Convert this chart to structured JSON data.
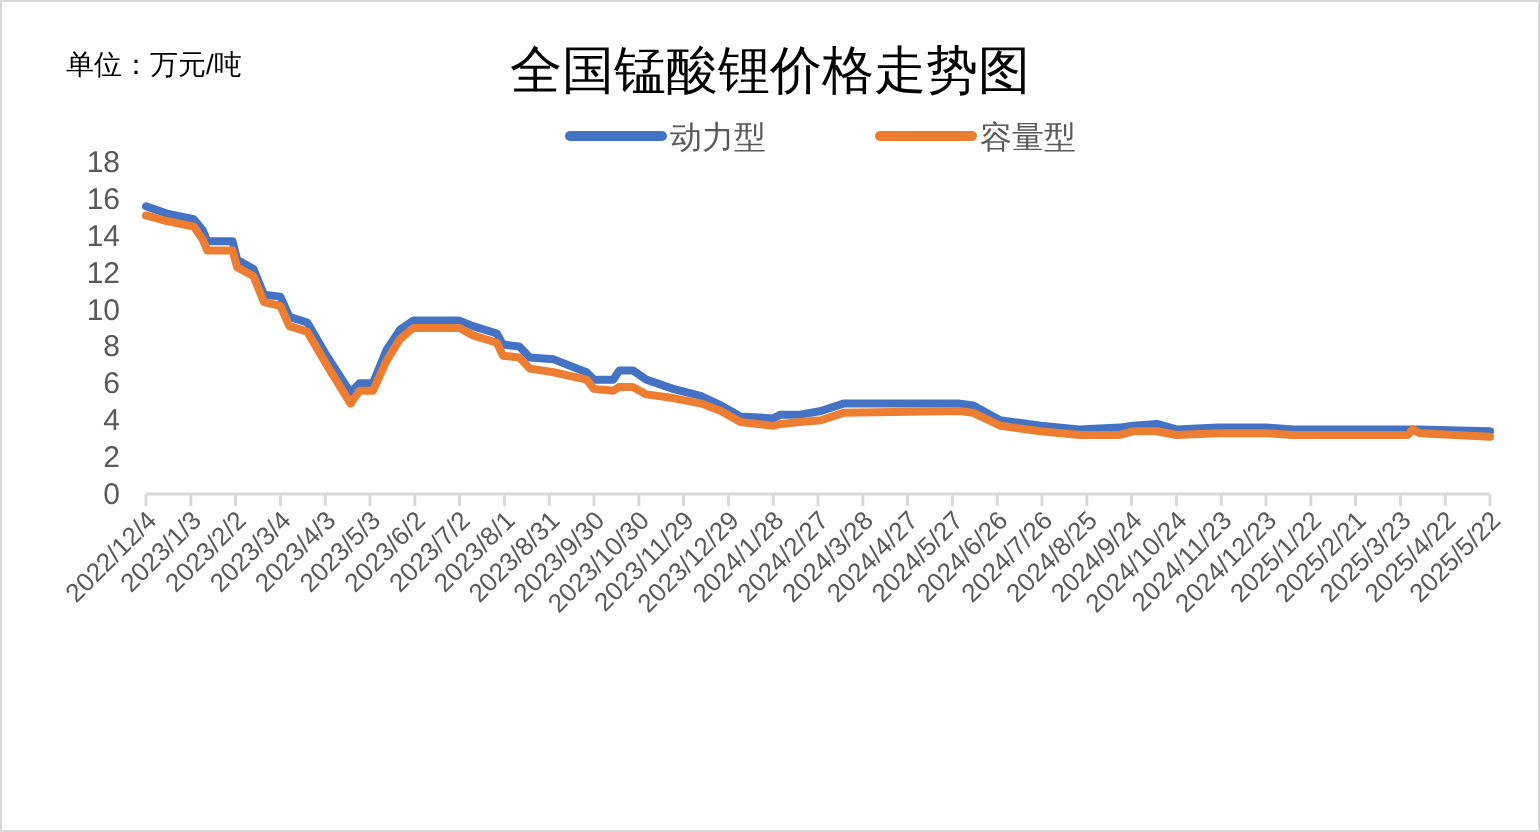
{
  "chart_data": {
    "type": "line",
    "title": "全国锰酸锂价格走势图",
    "annotations": [
      "单位：万元/吨"
    ],
    "legend": "top",
    "x": [
      "2022-12-04",
      "2022-12-18",
      "2023-01-05",
      "2023-01-11",
      "2023-01-14",
      "2023-01-31",
      "2023-02-03",
      "2023-02-14",
      "2023-02-21",
      "2023-03-04",
      "2023-03-10",
      "2023-03-22",
      "2023-04-04",
      "2023-04-20",
      "2023-04-26",
      "2023-05-05",
      "2023-05-14",
      "2023-05-23",
      "2023-06-01",
      "2023-07-02",
      "2023-07-11",
      "2023-07-27",
      "2023-07-31",
      "2023-08-11",
      "2023-08-18",
      "2023-09-03",
      "2023-09-25",
      "2023-09-30",
      "2023-10-13",
      "2023-10-17",
      "2023-10-26",
      "2023-11-04",
      "2023-11-22",
      "2023-12-11",
      "2023-12-24",
      "2024-01-06",
      "2024-01-28",
      "2024-02-02",
      "2024-02-15",
      "2024-02-29",
      "2024-03-15",
      "2024-06-01",
      "2024-06-10",
      "2024-06-28",
      "2024-07-25",
      "2024-08-20",
      "2024-09-16",
      "2024-09-25",
      "2024-10-11",
      "2024-10-24",
      "2024-11-21",
      "2024-12-23",
      "2025-01-10",
      "2025-03-13",
      "2025-03-28",
      "2025-03-31",
      "2025-04-05",
      "2025-05-22"
    ],
    "series": [
      {
        "name": "动力型",
        "color": "#4472c4",
        "values": [
          15.6,
          15.2,
          14.9,
          14.3,
          13.7,
          13.7,
          12.7,
          12.2,
          10.8,
          10.7,
          9.6,
          9.3,
          7.5,
          5.5,
          6.0,
          6.0,
          7.8,
          8.9,
          9.4,
          9.4,
          9.1,
          8.7,
          8.1,
          8.0,
          7.4,
          7.3,
          6.6,
          6.2,
          6.2,
          6.7,
          6.7,
          6.2,
          5.7,
          5.3,
          4.8,
          4.2,
          4.1,
          4.3,
          4.3,
          4.5,
          4.9,
          4.9,
          4.8,
          4.0,
          3.7,
          3.5,
          3.6,
          3.7,
          3.8,
          3.5,
          3.6,
          3.6,
          3.5,
          3.5,
          3.5,
          3.5,
          3.5,
          3.4
        ]
      },
      {
        "name": "容量型",
        "color": "#ed7d31",
        "values": [
          15.1,
          14.8,
          14.5,
          13.8,
          13.2,
          13.2,
          12.3,
          11.8,
          10.4,
          10.2,
          9.1,
          8.8,
          7.0,
          4.9,
          5.6,
          5.6,
          7.2,
          8.4,
          9.0,
          9.0,
          8.6,
          8.2,
          7.5,
          7.4,
          6.8,
          6.6,
          6.2,
          5.7,
          5.6,
          5.8,
          5.8,
          5.4,
          5.2,
          4.9,
          4.5,
          3.9,
          3.7,
          3.8,
          3.9,
          4.0,
          4.4,
          4.5,
          4.4,
          3.7,
          3.4,
          3.2,
          3.2,
          3.4,
          3.4,
          3.2,
          3.3,
          3.3,
          3.2,
          3.2,
          3.2,
          3.5,
          3.3,
          3.1
        ]
      }
    ],
    "xlim": [
      "2022-12-04",
      "2025-05-22"
    ],
    "xticks": [
      {
        "value": "2022-12-04",
        "label": "2022/12/4"
      },
      {
        "value": "2023-01-03",
        "label": "2023/1/3"
      },
      {
        "value": "2023-02-02",
        "label": "2023/2/2"
      },
      {
        "value": "2023-03-04",
        "label": "2023/3/4"
      },
      {
        "value": "2023-04-03",
        "label": "2023/4/3"
      },
      {
        "value": "2023-05-03",
        "label": "2023/5/3"
      },
      {
        "value": "2023-06-02",
        "label": "2023/6/2"
      },
      {
        "value": "2023-07-02",
        "label": "2023/7/2"
      },
      {
        "value": "2023-08-01",
        "label": "2023/8/1"
      },
      {
        "value": "2023-08-31",
        "label": "2023/8/31"
      },
      {
        "value": "2023-09-30",
        "label": "2023/9/30"
      },
      {
        "value": "2023-10-30",
        "label": "2023/10/30"
      },
      {
        "value": "2023-11-29",
        "label": "2023/11/29"
      },
      {
        "value": "2023-12-29",
        "label": "2023/12/29"
      },
      {
        "value": "2024-01-28",
        "label": "2024/1/28"
      },
      {
        "value": "2024-02-27",
        "label": "2024/2/27"
      },
      {
        "value": "2024-03-28",
        "label": "2024/3/28"
      },
      {
        "value": "2024-04-27",
        "label": "2024/4/27"
      },
      {
        "value": "2024-05-27",
        "label": "2024/5/27"
      },
      {
        "value": "2024-06-26",
        "label": "2024/6/26"
      },
      {
        "value": "2024-07-26",
        "label": "2024/7/26"
      },
      {
        "value": "2024-08-25",
        "label": "2024/8/25"
      },
      {
        "value": "2024-09-24",
        "label": "2024/9/24"
      },
      {
        "value": "2024-10-24",
        "label": "2024/10/24"
      },
      {
        "value": "2024-11-23",
        "label": "2024/11/23"
      },
      {
        "value": "2024-12-23",
        "label": "2024/12/23"
      },
      {
        "value": "2025-01-22",
        "label": "2025/1/22"
      },
      {
        "value": "2025-02-21",
        "label": "2025/2/21"
      },
      {
        "value": "2025-03-23",
        "label": "2025/3/23"
      },
      {
        "value": "2025-04-22",
        "label": "2025/4/22"
      },
      {
        "value": "2025-05-22",
        "label": "2025/5/22"
      }
    ],
    "ylim": [
      0,
      18
    ],
    "yticks": [
      0,
      2,
      4,
      6,
      8,
      10,
      12,
      14,
      16,
      18
    ]
  }
}
